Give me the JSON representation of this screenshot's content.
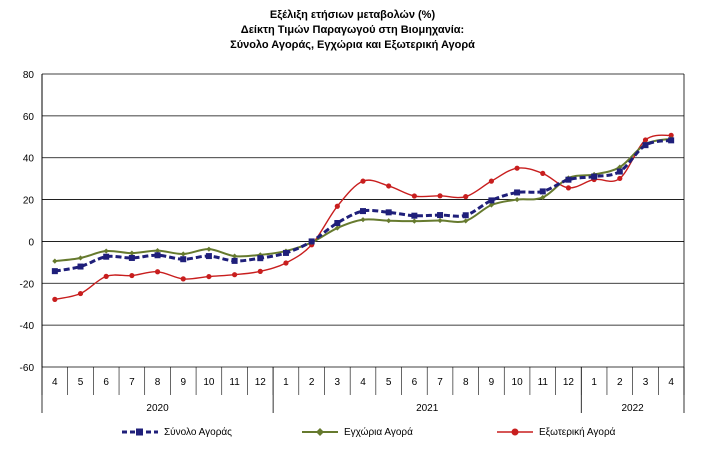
{
  "title_lines": [
    "Εξέλιξη ετήσιων μεταβολών (%)",
    "Δείκτη Τιμών Παραγωγού στη Βιομηχανία:",
    "Σύνολο Αγοράς, Εγχώρια και Εξωτερική Αγορά"
  ],
  "chart_data": {
    "type": "line",
    "title": "Εξέλιξη ετήσιων μεταβολών (%) Δείκτη Τιμών Παραγωγού στη Βιομηχανία: Σύνολο Αγοράς, Εγχώρια και Εξωτερική Αγορά",
    "categories": [
      "4",
      "5",
      "6",
      "7",
      "8",
      "9",
      "10",
      "11",
      "12",
      "1",
      "2",
      "3",
      "4",
      "5",
      "6",
      "7",
      "8",
      "9",
      "10",
      "11",
      "12",
      "1",
      "2",
      "3",
      "4"
    ],
    "year_groups": [
      {
        "label": "2020",
        "count": 9
      },
      {
        "label": "2021",
        "count": 12
      },
      {
        "label": "2022",
        "count": 4
      }
    ],
    "ylim": [
      -60,
      80
    ],
    "yticks": [
      -60,
      -40,
      -20,
      0,
      20,
      40,
      60,
      80
    ],
    "grid": true,
    "legend_position": "bottom",
    "series": [
      {
        "name": "Σύνολο Αγοράς",
        "color": "#1f1f7a",
        "style": "dashed-square",
        "values": [
          -14.2,
          -12.0,
          -7.3,
          -7.9,
          -6.6,
          -8.5,
          -7.0,
          -9.3,
          -8.0,
          -5.5,
          0.0,
          8.8,
          14.5,
          13.9,
          12.3,
          12.6,
          12.5,
          19.6,
          23.4,
          23.9,
          29.5,
          31.0,
          33.4,
          46.0,
          48.3
        ]
      },
      {
        "name": "Εγχώρια Αγορά",
        "color": "#667a2e",
        "style": "solid-diamond",
        "values": [
          -9.4,
          -7.9,
          -4.6,
          -5.6,
          -4.4,
          -6.0,
          -3.7,
          -7.0,
          -6.4,
          -4.6,
          -0.5,
          6.4,
          10.4,
          9.9,
          9.7,
          10.0,
          9.8,
          17.4,
          20.0,
          21.0,
          30.3,
          32.0,
          35.5,
          46.5,
          49.0
        ]
      },
      {
        "name": "Εξωτερική Αγορά",
        "color": "#c81e1e",
        "style": "solid-circle",
        "values": [
          -27.7,
          -24.9,
          -16.7,
          -16.3,
          -14.5,
          -17.9,
          -16.8,
          -15.9,
          -14.3,
          -10.3,
          -1.6,
          16.8,
          28.8,
          26.5,
          21.7,
          21.8,
          21.4,
          28.8,
          35.0,
          32.5,
          25.6,
          29.6,
          30.1,
          48.5,
          50.7
        ]
      }
    ]
  }
}
